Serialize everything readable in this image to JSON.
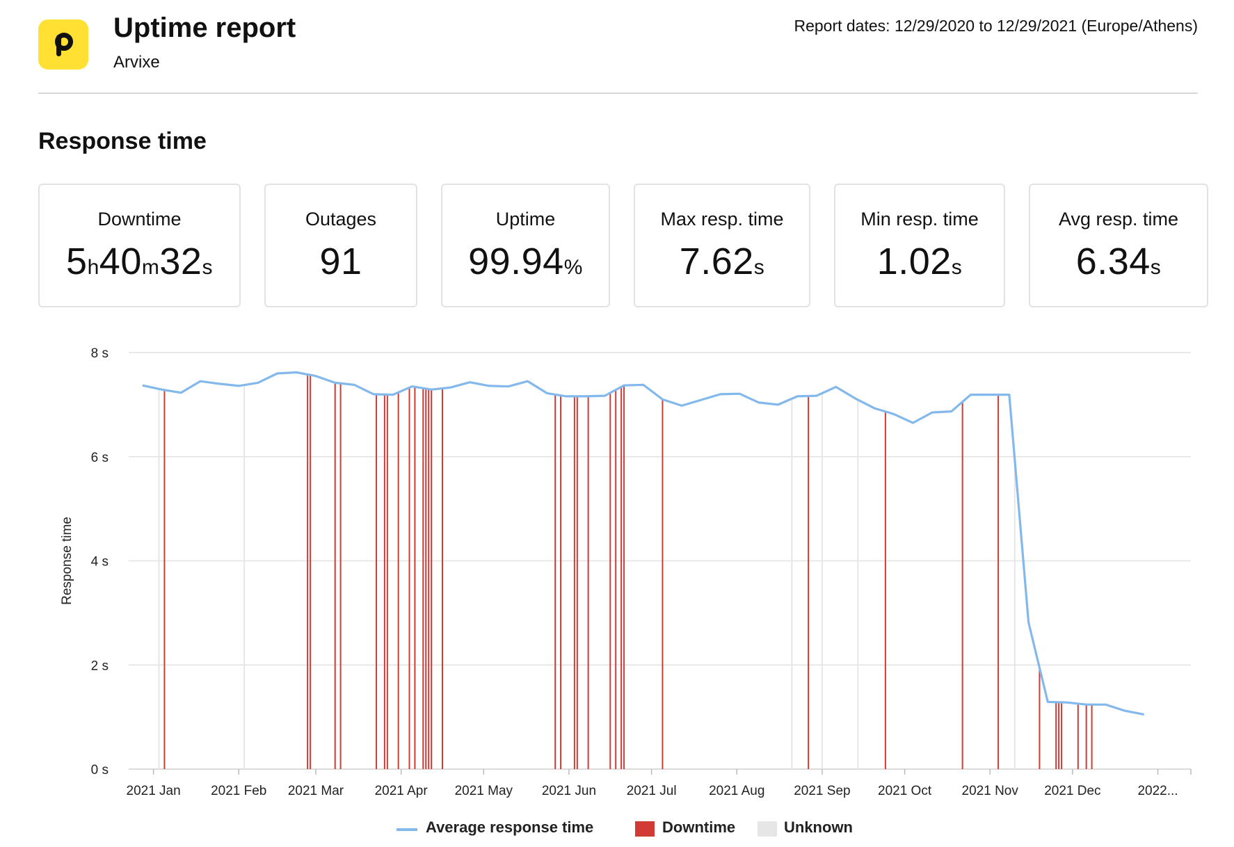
{
  "header": {
    "title": "Uptime report",
    "subtitle": "Arvixe",
    "report_dates": "Report dates: 12/29/2020 to 12/29/2021 (Europe/Athens)"
  },
  "section_title": "Response time",
  "stats": {
    "downtime": {
      "label": "Downtime",
      "h": "5",
      "h_unit": "h",
      "m": "40",
      "m_unit": "m",
      "s": "32",
      "s_unit": "s"
    },
    "outages": {
      "label": "Outages",
      "value": "91"
    },
    "uptime": {
      "label": "Uptime",
      "value": "99.94",
      "unit": "%"
    },
    "max_resp": {
      "label": "Max resp. time",
      "value": "7.62",
      "unit": "s"
    },
    "min_resp": {
      "label": "Min resp. time",
      "value": "1.02",
      "unit": "s"
    },
    "avg_resp": {
      "label": "Avg resp. time",
      "value": "6.34",
      "unit": "s"
    }
  },
  "colors": {
    "line": "#82b8ec",
    "downtime": "#d13b35",
    "unknown": "#e6e6e6",
    "grid": "#e2e2e2",
    "logo": "#ffe033"
  },
  "legend": {
    "line_label": "Average response time",
    "downtime_label": "Downtime",
    "unknown_label": "Unknown"
  },
  "chart_data": {
    "type": "line",
    "ylabel": "Response time",
    "ylim": [
      0,
      8
    ],
    "y_ticks": [
      0,
      2,
      4,
      6,
      8
    ],
    "y_tick_unit": "s",
    "grid": true,
    "legend_position": "bottom-center",
    "x_range": [
      "2020-12-23",
      "2022-01-13"
    ],
    "x_ticks": [
      {
        "date": "2021-01-01",
        "label": "2021 Jan"
      },
      {
        "date": "2021-02-01",
        "label": "2021 Feb"
      },
      {
        "date": "2021-03-01",
        "label": "2021 Mar"
      },
      {
        "date": "2021-04-01",
        "label": "2021 Apr"
      },
      {
        "date": "2021-05-01",
        "label": "2021 May"
      },
      {
        "date": "2021-06-01",
        "label": "2021 Jun"
      },
      {
        "date": "2021-07-01",
        "label": "2021 Jul"
      },
      {
        "date": "2021-08-01",
        "label": "2021 Aug"
      },
      {
        "date": "2021-09-01",
        "label": "2021 Sep"
      },
      {
        "date": "2021-10-01",
        "label": "2021 Oct"
      },
      {
        "date": "2021-11-01",
        "label": "2021 Nov"
      },
      {
        "date": "2021-12-01",
        "label": "2021 Dec"
      },
      {
        "date": "2022-01-01",
        "label": "2022..."
      }
    ],
    "series": [
      {
        "name": "Average response time",
        "x": [
          "2020-12-28",
          "2021-01-04",
          "2021-01-11",
          "2021-01-18",
          "2021-01-25",
          "2021-02-01",
          "2021-02-08",
          "2021-02-15",
          "2021-02-22",
          "2021-03-01",
          "2021-03-08",
          "2021-03-15",
          "2021-03-22",
          "2021-03-29",
          "2021-04-05",
          "2021-04-12",
          "2021-04-19",
          "2021-04-26",
          "2021-05-03",
          "2021-05-10",
          "2021-05-17",
          "2021-05-24",
          "2021-05-31",
          "2021-06-07",
          "2021-06-14",
          "2021-06-21",
          "2021-06-28",
          "2021-07-05",
          "2021-07-12",
          "2021-07-19",
          "2021-07-26",
          "2021-08-02",
          "2021-08-09",
          "2021-08-16",
          "2021-08-23",
          "2021-08-30",
          "2021-09-06",
          "2021-09-13",
          "2021-09-20",
          "2021-09-27",
          "2021-10-04",
          "2021-10-11",
          "2021-10-18",
          "2021-10-25",
          "2021-11-01",
          "2021-11-08",
          "2021-11-15",
          "2021-11-22",
          "2021-11-29",
          "2021-12-06",
          "2021-12-13",
          "2021-12-20",
          "2021-12-27"
        ],
        "values": [
          7.37,
          7.29,
          7.23,
          7.45,
          7.4,
          7.36,
          7.42,
          7.6,
          7.62,
          7.55,
          7.42,
          7.38,
          7.2,
          7.19,
          7.35,
          7.29,
          7.33,
          7.43,
          7.36,
          7.35,
          7.45,
          7.22,
          7.16,
          7.16,
          7.17,
          7.37,
          7.38,
          7.1,
          6.98,
          7.09,
          7.2,
          7.21,
          7.04,
          7.0,
          7.16,
          7.17,
          7.34,
          7.12,
          6.93,
          6.82,
          6.65,
          6.85,
          6.87,
          7.19,
          7.19,
          7.19,
          2.82,
          1.29,
          1.28,
          1.24,
          1.24,
          1.12,
          1.05
        ]
      }
    ],
    "downtime_dates": [
      "2021-01-05",
      "2021-02-26",
      "2021-02-27",
      "2021-03-08",
      "2021-03-10",
      "2021-03-23",
      "2021-03-26",
      "2021-03-27",
      "2021-03-31",
      "2021-04-04",
      "2021-04-06",
      "2021-04-09",
      "2021-04-10",
      "2021-04-11",
      "2021-04-12",
      "2021-04-16",
      "2021-05-27",
      "2021-05-29",
      "2021-06-03",
      "2021-06-04",
      "2021-06-08",
      "2021-06-16",
      "2021-06-18",
      "2021-06-20",
      "2021-06-21",
      "2021-07-05",
      "2021-08-27",
      "2021-09-24",
      "2021-10-22",
      "2021-11-04",
      "2021-11-19",
      "2021-11-25",
      "2021-11-26",
      "2021-11-27",
      "2021-12-03",
      "2021-12-06",
      "2021-12-08"
    ],
    "unknown_dates": [
      "2021-01-03",
      "2021-02-03",
      "2021-08-21",
      "2021-09-01",
      "2021-09-14",
      "2021-11-10"
    ]
  }
}
